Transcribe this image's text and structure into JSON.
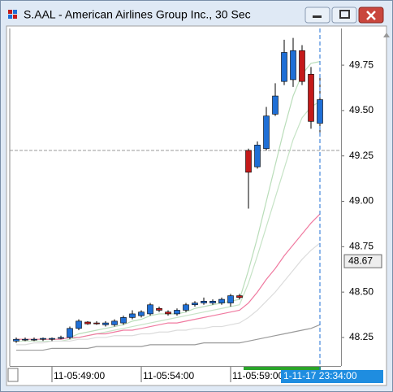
{
  "window": {
    "title": "S.AAL - American Airlines Group Inc., 30 Sec"
  },
  "chart_data": {
    "type": "candlestick",
    "categories": [
      null,
      null,
      null,
      null,
      "11-05:49:00",
      null,
      null,
      null,
      null,
      null,
      null,
      null,
      null,
      null,
      "11-05:54:00",
      null,
      null,
      null,
      null,
      null,
      null,
      null,
      null,
      null,
      "11-05:59:00",
      null,
      null,
      null,
      null,
      null,
      null,
      null,
      null,
      null,
      null
    ],
    "open": [
      48.23,
      48.24,
      48.24,
      48.24,
      48.24,
      48.245,
      48.25,
      48.3,
      48.335,
      48.33,
      48.32,
      48.32,
      48.33,
      48.36,
      48.37,
      48.38,
      48.41,
      48.39,
      48.38,
      48.4,
      48.43,
      48.44,
      48.44,
      48.44,
      48.44,
      48.48,
      49.28,
      49.19,
      49.29,
      49.48,
      49.66,
      49.67,
      49.83,
      49.7,
      49.43
    ],
    "high": [
      48.25,
      48.25,
      48.25,
      48.25,
      48.25,
      48.26,
      48.31,
      48.35,
      48.34,
      48.34,
      48.34,
      48.35,
      48.37,
      48.4,
      48.4,
      48.44,
      48.42,
      48.4,
      48.41,
      48.44,
      48.45,
      48.47,
      48.46,
      48.47,
      48.49,
      48.49,
      49.29,
      49.33,
      49.52,
      49.65,
      49.89,
      49.9,
      49.86,
      49.74,
      49.69
    ],
    "low": [
      48.22,
      48.23,
      48.23,
      48.23,
      48.23,
      48.24,
      48.24,
      48.29,
      48.32,
      48.32,
      48.31,
      48.31,
      48.32,
      48.35,
      48.36,
      48.37,
      48.39,
      48.37,
      48.37,
      48.39,
      48.42,
      48.43,
      48.43,
      48.43,
      48.42,
      48.46,
      48.96,
      49.18,
      49.28,
      49.47,
      49.64,
      49.63,
      49.64,
      49.4,
      49.38
    ],
    "close": [
      48.24,
      48.24,
      48.24,
      48.245,
      48.245,
      48.25,
      48.3,
      48.34,
      48.325,
      48.325,
      48.33,
      48.34,
      48.36,
      48.38,
      48.39,
      48.43,
      48.4,
      48.38,
      48.4,
      48.43,
      48.44,
      48.45,
      48.45,
      48.46,
      48.48,
      48.47,
      49.16,
      49.31,
      49.47,
      49.58,
      49.82,
      49.83,
      49.66,
      49.44,
      49.56
    ],
    "up_color": "#1f6fd6",
    "down_color": "#c41a1a",
    "lines": [
      {
        "color": "#b9ddb9",
        "values": [
          48.24,
          48.24,
          48.24,
          48.24,
          48.24,
          48.24,
          48.25,
          48.27,
          48.28,
          48.29,
          48.3,
          48.31,
          48.32,
          48.34,
          48.35,
          48.37,
          48.38,
          48.38,
          48.38,
          48.39,
          48.41,
          48.42,
          48.43,
          48.44,
          48.45,
          48.46,
          48.62,
          48.8,
          49.0,
          49.2,
          49.4,
          49.58,
          49.7,
          49.76,
          49.77
        ]
      },
      {
        "color": "#c6e3c6",
        "values": [
          48.23,
          48.23,
          48.23,
          48.23,
          48.23,
          48.23,
          48.24,
          48.25,
          48.26,
          48.27,
          48.28,
          48.29,
          48.3,
          48.31,
          48.32,
          48.33,
          48.34,
          48.35,
          48.36,
          48.37,
          48.38,
          48.39,
          48.4,
          48.41,
          48.42,
          48.43,
          48.55,
          48.7,
          48.86,
          49.02,
          49.18,
          49.34,
          49.46,
          49.52,
          49.55
        ]
      },
      {
        "color": "#f07aa0",
        "values": [
          48.24,
          48.24,
          48.24,
          48.24,
          48.24,
          48.24,
          48.25,
          48.25,
          48.26,
          48.27,
          48.27,
          48.28,
          48.29,
          48.29,
          48.3,
          48.31,
          48.32,
          48.33,
          48.33,
          48.34,
          48.35,
          48.36,
          48.37,
          48.38,
          48.39,
          48.4,
          48.44,
          48.5,
          48.57,
          48.63,
          48.7,
          48.76,
          48.82,
          48.88,
          48.93
        ]
      },
      {
        "color": "#dcdcdc",
        "values": [
          48.21,
          48.21,
          48.22,
          48.22,
          48.23,
          48.23,
          48.23,
          48.24,
          48.24,
          48.25,
          48.25,
          48.26,
          48.26,
          48.26,
          48.27,
          48.27,
          48.28,
          48.28,
          48.29,
          48.29,
          48.3,
          48.3,
          48.31,
          48.31,
          48.32,
          48.33,
          48.36,
          48.4,
          48.45,
          48.5,
          48.56,
          48.62,
          48.68,
          48.73,
          48.77
        ]
      },
      {
        "color": "#9a9a9a",
        "values": [
          48.18,
          48.18,
          48.18,
          48.18,
          48.19,
          48.19,
          48.19,
          48.19,
          48.19,
          48.2,
          48.2,
          48.2,
          48.2,
          48.2,
          48.2,
          48.21,
          48.21,
          48.21,
          48.21,
          48.21,
          48.21,
          48.22,
          48.22,
          48.22,
          48.22,
          48.22,
          48.23,
          48.24,
          48.25,
          48.26,
          48.27,
          48.28,
          48.29,
          48.3,
          48.32
        ]
      }
    ],
    "hline": 49.28,
    "marker_label": {
      "value": 48.67,
      "label": "48.67"
    },
    "crosshair_label": "1-11-17 23:34:00",
    "ylim": [
      48.093,
      49.952
    ],
    "yticks": [
      48.25,
      {
        "value": 48.5,
        "label": "48.50"
      },
      48.75,
      {
        "value": 49,
        "label": "49.00"
      },
      49.25,
      {
        "value": 49.5,
        "label": "49.50"
      },
      49.75
    ]
  }
}
